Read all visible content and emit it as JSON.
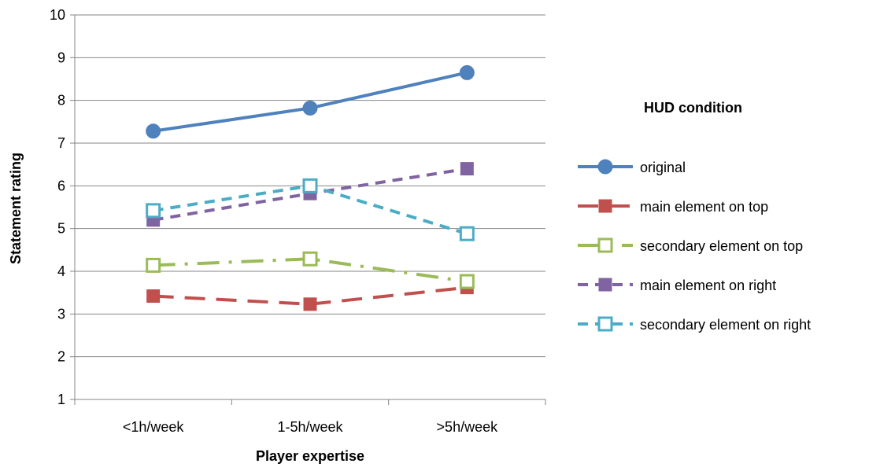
{
  "chart_data": {
    "type": "line",
    "title": "",
    "xlabel": "Player expertise",
    "ylabel": "Statement rating",
    "categories": [
      "<1h/week",
      "1-5h/week",
      ">5h/week"
    ],
    "ylim": [
      1,
      10
    ],
    "yticks": [
      1,
      2,
      3,
      4,
      5,
      6,
      7,
      8,
      9,
      10
    ],
    "grid": "horizontal",
    "legend": {
      "title": "HUD condition",
      "position": "right"
    },
    "series": [
      {
        "name": "original",
        "values": [
          7.28,
          7.82,
          8.65
        ],
        "color": "#4F81BD",
        "marker": "circle-filled",
        "dash": "solid"
      },
      {
        "name": "main element on top",
        "values": [
          3.42,
          3.23,
          3.62
        ],
        "color": "#C0504D",
        "marker": "square-filled",
        "dash": "long-dash"
      },
      {
        "name": "secondary element on top",
        "values": [
          4.14,
          4.29,
          3.76
        ],
        "color": "#9BBB59",
        "marker": "square-open",
        "dash": "long-dash-dot"
      },
      {
        "name": "main element on right",
        "values": [
          5.2,
          5.82,
          6.4
        ],
        "color": "#8064A2",
        "marker": "square-filled",
        "dash": "dash"
      },
      {
        "name": "secondary element on right",
        "values": [
          5.42,
          6.0,
          4.88
        ],
        "color": "#4BACC6",
        "marker": "square-open",
        "dash": "dash"
      }
    ]
  }
}
